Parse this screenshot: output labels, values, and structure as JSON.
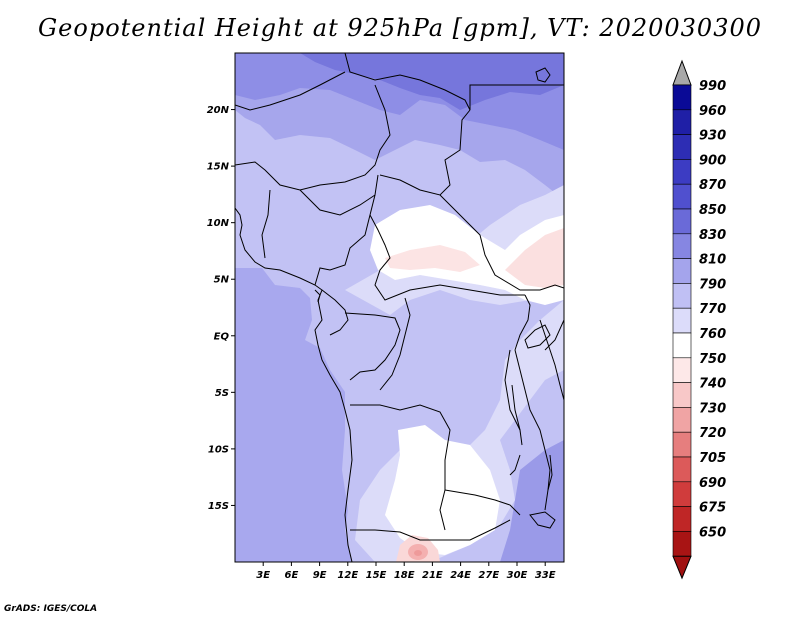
{
  "title": "Geopotential Height at 925hPa [gpm], VT: 2020030300",
  "credit": "GrADS: IGES/COLA",
  "map": {
    "variable": "Geopotential Height",
    "level": "925hPa",
    "units": "gpm",
    "valid_time": "2020030300",
    "lon_range": [
      0,
      35
    ],
    "lat_range": [
      -20,
      25
    ],
    "lat_ticks": [
      {
        "value": 20,
        "label": "20N"
      },
      {
        "value": 15,
        "label": "15N"
      },
      {
        "value": 10,
        "label": "10N"
      },
      {
        "value": 5,
        "label": "5N"
      },
      {
        "value": 0,
        "label": "EQ"
      },
      {
        "value": -5,
        "label": "5S"
      },
      {
        "value": -10,
        "label": "10S"
      },
      {
        "value": -15,
        "label": "15S"
      }
    ],
    "lon_ticks": [
      {
        "value": 3,
        "label": "3E"
      },
      {
        "value": 6,
        "label": "6E"
      },
      {
        "value": 9,
        "label": "9E"
      },
      {
        "value": 12,
        "label": "12E"
      },
      {
        "value": 15,
        "label": "15E"
      },
      {
        "value": 18,
        "label": "18E"
      },
      {
        "value": 21,
        "label": "21E"
      },
      {
        "value": 24,
        "label": "24E"
      },
      {
        "value": 27,
        "label": "27E"
      },
      {
        "value": 30,
        "label": "30E"
      },
      {
        "value": 33,
        "label": "33E"
      }
    ]
  },
  "colorbar": {
    "levels": [
      {
        "label": "990",
        "color": "#0a0a96"
      },
      {
        "label": "960",
        "color": "#1f1fa6"
      },
      {
        "label": "930",
        "color": "#2d2db4"
      },
      {
        "label": "900",
        "color": "#3c3cc3"
      },
      {
        "label": "870",
        "color": "#5050cf"
      },
      {
        "label": "850",
        "color": "#6a6ad8"
      },
      {
        "label": "830",
        "color": "#8686e2"
      },
      {
        "label": "810",
        "color": "#a4a4ec"
      },
      {
        "label": "790",
        "color": "#c0c0f4"
      },
      {
        "label": "770",
        "color": "#dcdcfa"
      },
      {
        "label": "760",
        "color": "#ffffff"
      },
      {
        "label": "750",
        "color": "#fde8e8"
      },
      {
        "label": "740",
        "color": "#f8c8c8"
      },
      {
        "label": "730",
        "color": "#f0a4a4"
      },
      {
        "label": "720",
        "color": "#e67e7e"
      },
      {
        "label": "705",
        "color": "#dc5a5a"
      },
      {
        "label": "690",
        "color": "#d03c3c"
      },
      {
        "label": "675",
        "color": "#bf2626"
      },
      {
        "label": "650",
        "color": "#a81414"
      }
    ],
    "top_arrow_color": "#a8a8a8",
    "bottom_arrow_color": "#a01010"
  }
}
